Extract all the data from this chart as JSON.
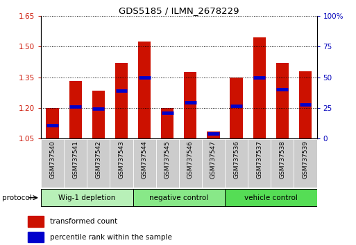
{
  "title": "GDS5185 / ILMN_2678229",
  "samples": [
    "GSM737540",
    "GSM737541",
    "GSM737542",
    "GSM737543",
    "GSM737544",
    "GSM737545",
    "GSM737546",
    "GSM737547",
    "GSM737536",
    "GSM737537",
    "GSM737538",
    "GSM737539"
  ],
  "red_bar_top": [
    1.2,
    1.33,
    1.285,
    1.42,
    1.525,
    1.2,
    1.375,
    1.085,
    1.35,
    1.545,
    1.42,
    1.38
  ],
  "red_bar_bottom": [
    1.05,
    1.05,
    1.05,
    1.05,
    1.05,
    1.05,
    1.05,
    1.05,
    1.05,
    1.05,
    1.05,
    1.05
  ],
  "blue_marker_val": [
    1.115,
    1.205,
    1.195,
    1.285,
    1.35,
    1.175,
    1.225,
    1.075,
    1.21,
    1.35,
    1.29,
    1.215
  ],
  "ylim": [
    1.05,
    1.65
  ],
  "ylim_right": [
    0,
    100
  ],
  "yticks_left": [
    1.05,
    1.2,
    1.35,
    1.5,
    1.65
  ],
  "yticks_right": [
    0,
    25,
    50,
    75,
    100
  ],
  "groups": [
    {
      "label": "Wig-1 depletion",
      "start": 0,
      "end": 4,
      "color": "#b8f0b8"
    },
    {
      "label": "negative control",
      "start": 4,
      "end": 8,
      "color": "#88e888"
    },
    {
      "label": "vehicle control",
      "start": 8,
      "end": 12,
      "color": "#55dd55"
    }
  ],
  "bar_color": "#cc1100",
  "blue_color": "#0000cc",
  "bar_width": 0.55,
  "protocol_label": "protocol",
  "legend_red": "transformed count",
  "legend_blue": "percentile rank within the sample",
  "background_color": "#ffffff",
  "tick_label_color_left": "#cc1100",
  "tick_label_color_right": "#0000bb"
}
